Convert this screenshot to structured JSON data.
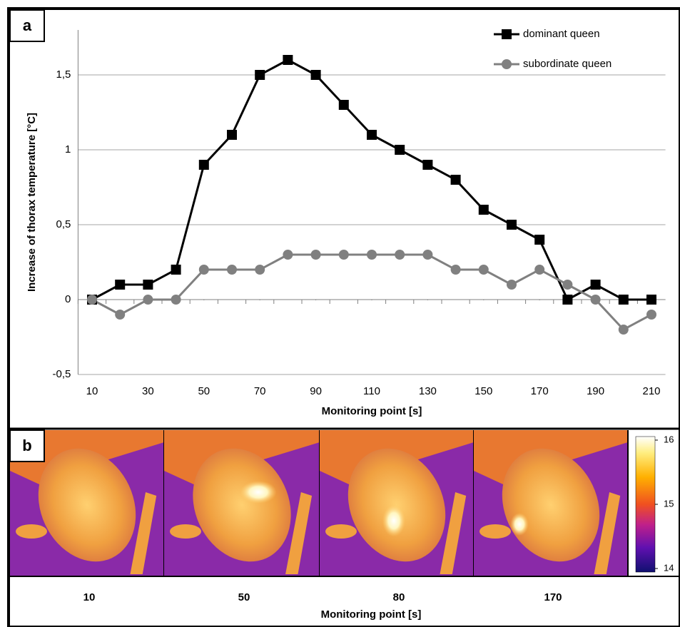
{
  "chart_data": {
    "type": "line",
    "panel_label": "a",
    "xlabel": "Monitoring point [s]",
    "ylabel": "Increase of thorax temperature [°C]",
    "x": [
      10,
      20,
      30,
      40,
      50,
      60,
      70,
      80,
      90,
      100,
      110,
      120,
      130,
      140,
      150,
      160,
      170,
      180,
      190,
      200,
      210
    ],
    "xlim": [
      5,
      215
    ],
    "xticks": [
      10,
      30,
      50,
      70,
      90,
      110,
      130,
      150,
      170,
      190,
      210
    ],
    "ylim": [
      -0.5,
      1.8
    ],
    "yticks": [
      {
        "value": -0.5,
        "label": "-0,5"
      },
      0,
      {
        "value": 0.5,
        "label": "0,5"
      },
      1,
      {
        "value": 1.5,
        "label": "1,5"
      }
    ],
    "grid": true,
    "legend": "top-right",
    "series": [
      {
        "name": "dominant queen",
        "color": "#000000",
        "marker": "square",
        "values": [
          0,
          0.1,
          0.1,
          0.2,
          0.9,
          1.1,
          1.5,
          1.6,
          1.5,
          1.3,
          1.1,
          1.0,
          0.9,
          0.8,
          0.6,
          0.5,
          0.4,
          0,
          0.1,
          0,
          0
        ]
      },
      {
        "name": "subordinate queen",
        "color": "#808080",
        "marker": "circle",
        "values": [
          0,
          -0.1,
          0,
          0,
          0.2,
          0.2,
          0.2,
          0.3,
          0.3,
          0.3,
          0.3,
          0.3,
          0.3,
          0.2,
          0.2,
          0.1,
          0.2,
          0.1,
          0,
          -0.2,
          -0.1
        ]
      }
    ]
  },
  "panel_b": {
    "label": "b",
    "frames": [
      10,
      50,
      80,
      170
    ],
    "xlabel": "Monitoring point [s]",
    "colorbar": {
      "lim": [
        14,
        16
      ],
      "ticks": [
        14,
        15,
        16
      ]
    }
  }
}
